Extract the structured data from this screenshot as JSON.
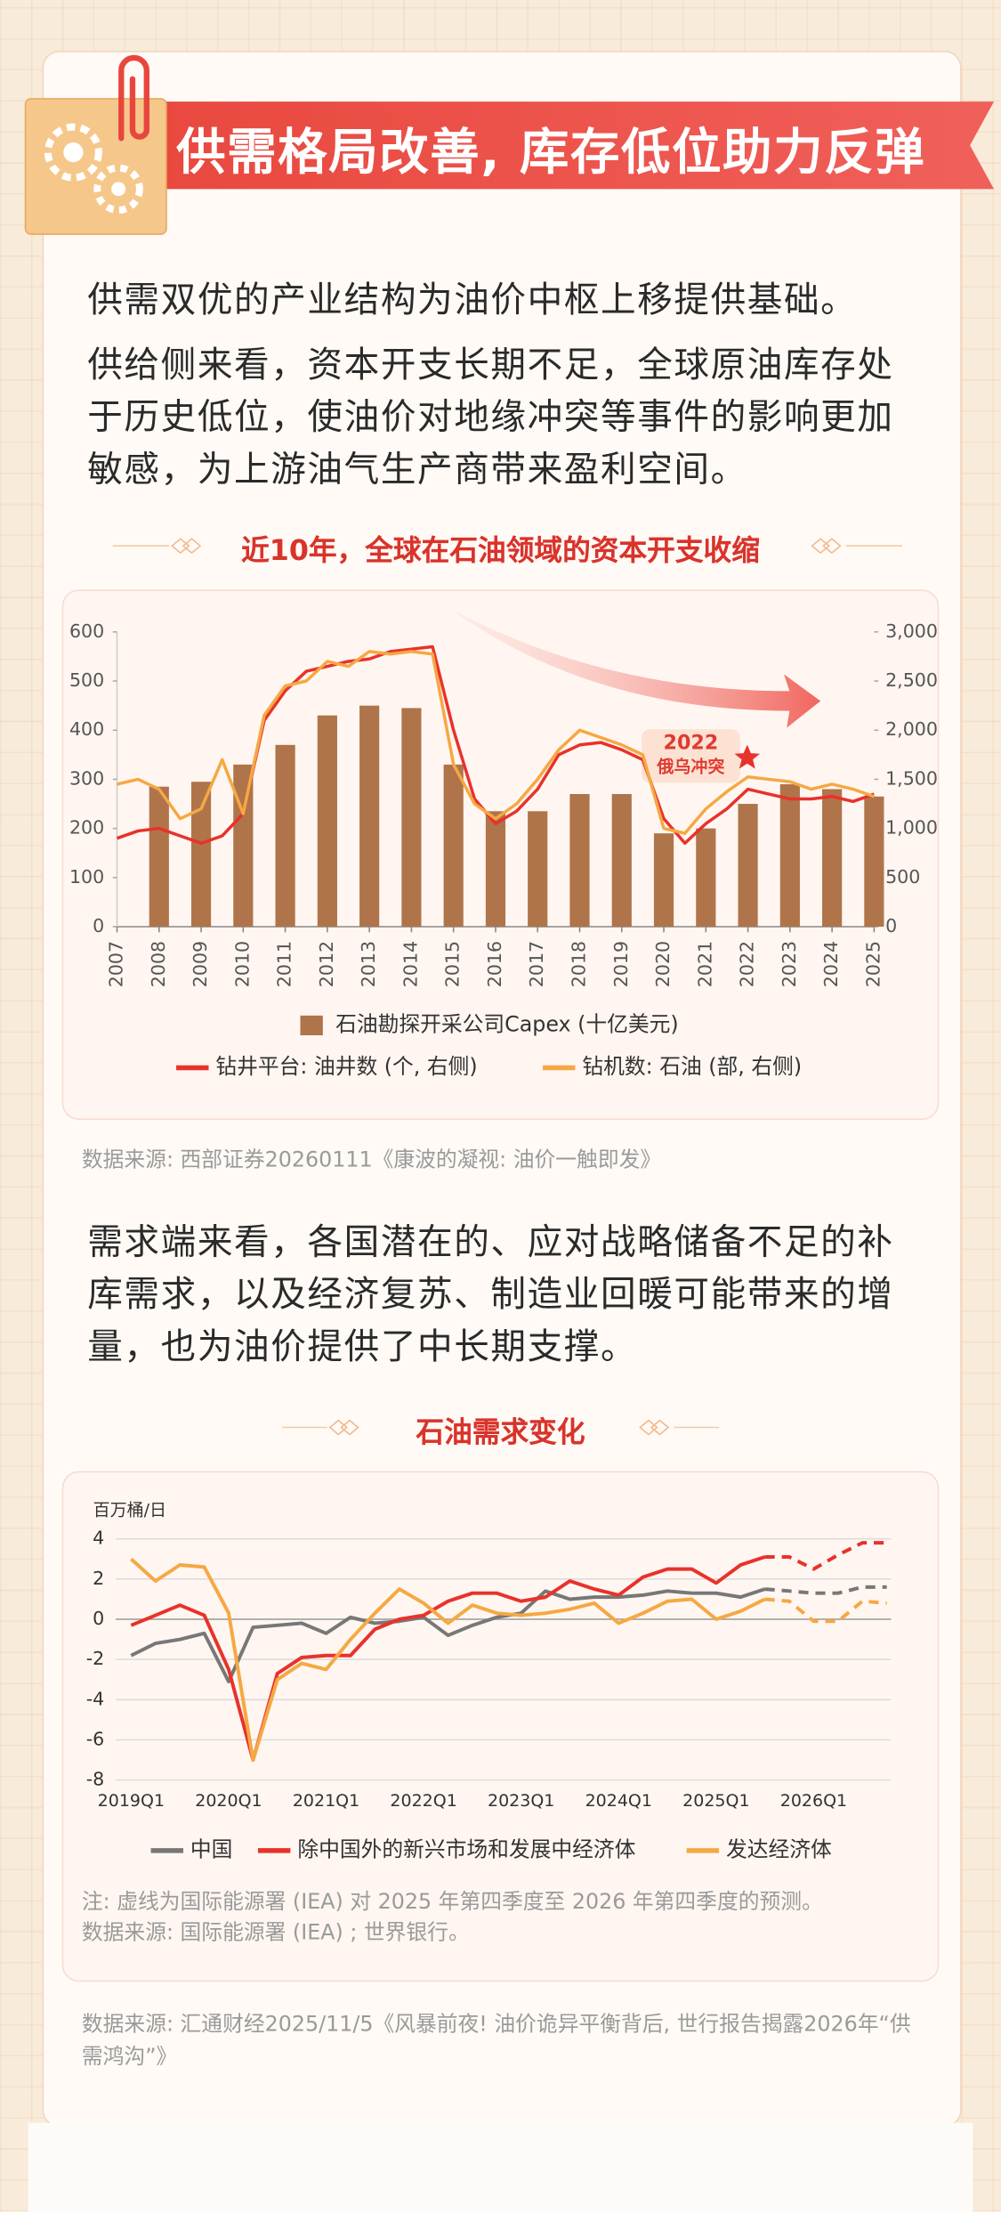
{
  "header": {
    "title": "供需格局改善, 库存低位助力反弹"
  },
  "intro": {
    "paragraphs": [
      "供需双优的产业结构为油价中枢上移提供基础。",
      "供给侧来看，资本开支长期不足，全球原油库存处于历史低位，使油价对地缘冲突等事件的影响更加敏感，为上游油气生产商带来盈利空间。"
    ]
  },
  "section1": {
    "heading": "近10年，全球在石油领域的资本开支收缩",
    "source": "数据来源: 西部证券20260111《康波的凝视: 油价一触即发》"
  },
  "demand": {
    "paragraph": "需求端来看，各国潜在的、应对战略储备不足的补库需求，以及经济复苏、制造业回暖可能带来的增量，也为油价提供了中长期支撑。"
  },
  "section2": {
    "heading": "石油需求变化"
  },
  "footer": {
    "source": "数据来源: 汇通财经2025/11/5《风暴前夜! 油价诡异平衡背后, 世行报告揭露2026年“供需鸿沟”》"
  },
  "chart_data": [
    {
      "type": "combo",
      "xlim": [
        2007,
        2025
      ],
      "xticks": [
        2007,
        2008,
        2009,
        2010,
        2011,
        2012,
        2013,
        2014,
        2015,
        2016,
        2017,
        2018,
        2019,
        2020,
        2021,
        2022,
        2023,
        2024,
        2025
      ],
      "ylim": [
        0,
        600
      ],
      "yticks": [
        0,
        100,
        200,
        300,
        400,
        500,
        600
      ],
      "y2lim": [
        0,
        3000
      ],
      "y2ticks": [
        0,
        500,
        {
          "value": 1000,
          "label": "1,000"
        },
        {
          "value": 1500,
          "label": "1,500"
        },
        {
          "value": 2000,
          "label": "2,000"
        },
        {
          "value": 2500,
          "label": "2,500"
        },
        {
          "value": 3000,
          "label": "3,000"
        }
      ],
      "annotation": {
        "year": "2022",
        "text": "俄乌冲突"
      },
      "series": [
        {
          "name": "石油勘探开采公司Capex (十亿美元)",
          "type": "bar",
          "color": "#b0744a",
          "x": [
            2008,
            2009,
            2010,
            2011,
            2012,
            2013,
            2014,
            2015,
            2016,
            2017,
            2018,
            2019,
            2020,
            2021,
            2022,
            2023,
            2024,
            2025
          ],
          "values": [
            285,
            295,
            330,
            370,
            430,
            450,
            445,
            330,
            235,
            235,
            270,
            270,
            190,
            200,
            250,
            290,
            280,
            265
          ]
        },
        {
          "name": "钻井平台: 油井数 (个, 右侧)",
          "type": "line",
          "axis": "y2",
          "color": "#e8322b",
          "x": [
            2007,
            2007.5,
            2008,
            2008.5,
            2009,
            2009.5,
            2010,
            2010.5,
            2011,
            2011.5,
            2012,
            2012.5,
            2013,
            2013.5,
            2014,
            2014.5,
            2015,
            2015.5,
            2016,
            2016.5,
            2017,
            2017.5,
            2018,
            2018.5,
            2019,
            2019.5,
            2020,
            2020.5,
            2021,
            2021.5,
            2022,
            2022.5,
            2023,
            2023.5,
            2024,
            2024.5,
            2025
          ],
          "values": [
            900,
            975,
            1000,
            925,
            850,
            925,
            1150,
            2100,
            2400,
            2600,
            2650,
            2700,
            2725,
            2800,
            2825,
            2850,
            2000,
            1300,
            1050,
            1175,
            1400,
            1750,
            1850,
            1875,
            1800,
            1700,
            1100,
            850,
            1050,
            1200,
            1400,
            1350,
            1300,
            1300,
            1325,
            1275,
            1350
          ]
        },
        {
          "name": "钻机数: 石油 (部, 右侧)",
          "type": "line",
          "axis": "y2",
          "color": "#f5a843",
          "x": [
            2007,
            2007.5,
            2008,
            2008.5,
            2009,
            2009.5,
            2010,
            2010.5,
            2011,
            2011.5,
            2012,
            2012.5,
            2013,
            2013.5,
            2014,
            2014.5,
            2015,
            2015.5,
            2016,
            2016.5,
            2017,
            2017.5,
            2018,
            2018.5,
            2019,
            2019.5,
            2020,
            2020.5,
            2021,
            2021.5,
            2022,
            2022.5,
            2023,
            2023.5,
            2024,
            2024.5,
            2025
          ],
          "values": [
            1450,
            1500,
            1400,
            1100,
            1200,
            1700,
            1150,
            2150,
            2450,
            2500,
            2700,
            2650,
            2800,
            2775,
            2800,
            2775,
            1650,
            1250,
            1100,
            1250,
            1500,
            1800,
            2000,
            1925,
            1850,
            1750,
            1000,
            950,
            1200,
            1375,
            1525,
            1500,
            1475,
            1400,
            1450,
            1400,
            1325
          ]
        }
      ]
    },
    {
      "type": "line",
      "y_label": "百万桶/日",
      "grid": true,
      "dashed_from": 26,
      "categories": [
        "2019Q1",
        null,
        null,
        null,
        "2020Q1",
        null,
        null,
        null,
        "2021Q1",
        null,
        null,
        null,
        "2022Q1",
        null,
        null,
        null,
        "2023Q1",
        null,
        null,
        null,
        "2024Q1",
        null,
        null,
        null,
        "2025Q1",
        null,
        null,
        null,
        "2026Q1",
        null,
        null,
        null
      ],
      "ylim": [
        -8,
        4
      ],
      "yticks": [
        -8,
        -6,
        -4,
        -2,
        0,
        2,
        4
      ],
      "note": "注: 虚线为国际能源署 (IEA) 对 2025 年第四季度至 2026 年第四季度的预测。",
      "source": "数据来源: 国际能源署 (IEA) ; 世界银行。",
      "series": [
        {
          "name": "中国",
          "color": "#777777",
          "values": [
            -1.8,
            -1.2,
            -1.0,
            -0.7,
            -3.1,
            -0.4,
            -0.3,
            -0.2,
            -0.7,
            0.1,
            -0.2,
            -0.1,
            0.1,
            -0.8,
            -0.3,
            0.1,
            0.3,
            1.4,
            1.0,
            1.1,
            1.1,
            1.2,
            1.4,
            1.3,
            1.3,
            1.1,
            1.5,
            1.4,
            1.3,
            1.3,
            1.6,
            1.6
          ]
        },
        {
          "name": "除中国外的新兴市场和发展中经济体",
          "color": "#e8322b",
          "values": [
            -0.3,
            0.2,
            0.7,
            0.2,
            -2.5,
            -7.0,
            -2.7,
            -1.9,
            -1.8,
            -1.8,
            -0.5,
            0.0,
            0.2,
            0.9,
            1.3,
            1.3,
            0.9,
            1.1,
            1.9,
            1.5,
            1.2,
            2.1,
            2.5,
            2.5,
            1.8,
            2.7,
            3.1,
            3.1,
            2.5,
            3.2,
            3.8,
            3.8
          ]
        },
        {
          "name": "发达经济体",
          "color": "#f5a843",
          "values": [
            3.0,
            1.9,
            2.7,
            2.6,
            0.3,
            -7.0,
            -3.0,
            -2.2,
            -2.5,
            -1.0,
            0.3,
            1.5,
            0.8,
            -0.2,
            0.7,
            0.3,
            0.2,
            0.3,
            0.5,
            0.8,
            -0.2,
            0.3,
            0.9,
            1.0,
            0.0,
            0.4,
            1.0,
            0.9,
            -0.1,
            -0.1,
            0.9,
            0.8
          ]
        }
      ]
    }
  ]
}
